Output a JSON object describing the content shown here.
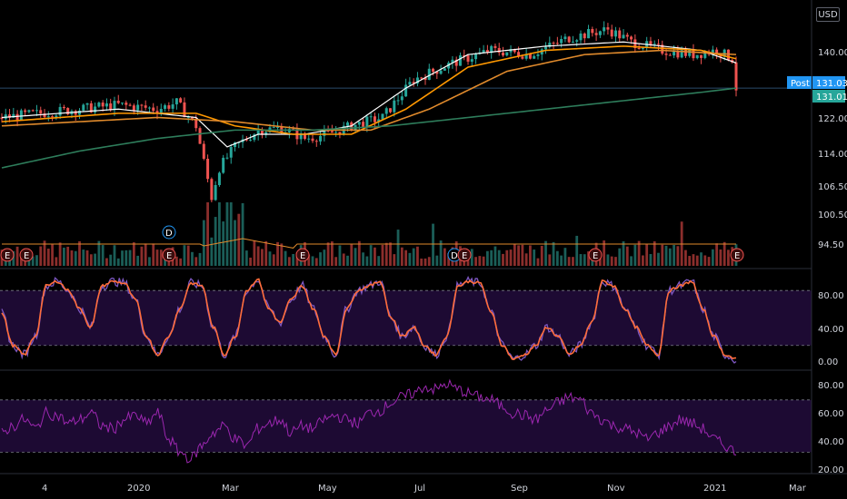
{
  "currency_label": "USD",
  "price_axis": {
    "ticks": [
      "140.00",
      "131.01",
      "122.00",
      "114.00",
      "106.50",
      "100.50",
      "94.50"
    ],
    "post_label": "Post",
    "post_value": "131.03",
    "last_value": "131.01"
  },
  "stoch_axis": {
    "ticks": [
      "80.00",
      "40.00",
      "0.00"
    ]
  },
  "rsi_axis": {
    "ticks": [
      "80.00",
      "60.00",
      "40.00",
      "20.00"
    ]
  },
  "time_axis": {
    "labels": [
      "4",
      "2020",
      "Mar",
      "May",
      "Jul",
      "Sep",
      "Nov",
      "2021",
      "Mar"
    ]
  },
  "event_markers": [
    {
      "label": "E"
    },
    {
      "label": "E"
    },
    {
      "label": "D"
    },
    {
      "label": "E"
    },
    {
      "label": "E"
    },
    {
      "label": "D"
    },
    {
      "label": "E"
    },
    {
      "label": "E"
    },
    {
      "label": "E"
    }
  ],
  "colors": {
    "background": "#000000",
    "up": "#26a69a",
    "down": "#ef5350",
    "ma_white": "#ffffff",
    "ma_orange_fast": "#ff9800",
    "ma_orange_slow": "#e08a2c",
    "ma_green": "#2e7d5b",
    "stoch_k": "#7e57c2",
    "stoch_d": "#ff6d3a",
    "rsi": "#9c27b0",
    "band_fill": "#1d0a33",
    "post_badge": "#2196f3",
    "last_badge": "#26a69a"
  },
  "chart_data": [
    {
      "type": "candlestick",
      "title": "",
      "ylim": [
        88,
        152
      ],
      "y_ticks": [
        94.5,
        100.5,
        106.5,
        114,
        122,
        131.01,
        140
      ],
      "x_labels": [
        "4",
        "2020",
        "Mar",
        "May",
        "Jul",
        "Sep",
        "Nov",
        "2021",
        "Mar"
      ],
      "price_path": [
        [
          0,
          124
        ],
        [
          10,
          125
        ],
        [
          20,
          126
        ],
        [
          30,
          127
        ],
        [
          40,
          126
        ],
        [
          45,
          127.5
        ],
        [
          50,
          122
        ],
        [
          54,
          105
        ],
        [
          56,
          112
        ],
        [
          60,
          117
        ],
        [
          66,
          121
        ],
        [
          72,
          121.5
        ],
        [
          78,
          119
        ],
        [
          84,
          120
        ],
        [
          90,
          122
        ],
        [
          98,
          124
        ],
        [
          106,
          133
        ],
        [
          116,
          137
        ],
        [
          126,
          140
        ],
        [
          136,
          139
        ],
        [
          146,
          143
        ],
        [
          156,
          145
        ],
        [
          162,
          142
        ],
        [
          170,
          140
        ],
        [
          178,
          139
        ],
        [
          184,
          140
        ],
        [
          188,
          138
        ],
        [
          189,
          131.01
        ]
      ],
      "moving_averages": [
        {
          "name": "MA fast (white)",
          "points": [
            [
              0,
              124
            ],
            [
              30,
              126
            ],
            [
              50,
              124
            ],
            [
              58,
              117
            ],
            [
              66,
              120
            ],
            [
              78,
              120
            ],
            [
              90,
              122
            ],
            [
              104,
              131
            ],
            [
              120,
              139
            ],
            [
              140,
              141
            ],
            [
              160,
              142
            ],
            [
              180,
              140
            ],
            [
              189,
              137
            ]
          ]
        },
        {
          "name": "MA mid (orange)",
          "points": [
            [
              0,
              123
            ],
            [
              30,
              125
            ],
            [
              50,
              125
            ],
            [
              60,
              122
            ],
            [
              75,
              120
            ],
            [
              90,
              120
            ],
            [
              104,
              126
            ],
            [
              120,
              136
            ],
            [
              140,
              140
            ],
            [
              160,
              141
            ],
            [
              180,
              140
            ],
            [
              189,
              138
            ]
          ]
        },
        {
          "name": "MA slow (orange)",
          "points": [
            [
              0,
              122
            ],
            [
              40,
              124
            ],
            [
              60,
              123
            ],
            [
              80,
              121
            ],
            [
              95,
              121
            ],
            [
              110,
              126
            ],
            [
              130,
              135
            ],
            [
              150,
              139
            ],
            [
              170,
              140
            ],
            [
              189,
              139
            ]
          ]
        },
        {
          "name": "MA long (green)",
          "points": [
            [
              0,
              112
            ],
            [
              20,
              116
            ],
            [
              40,
              119
            ],
            [
              60,
              121
            ],
            [
              80,
              121
            ],
            [
              100,
              122
            ],
            [
              120,
              124
            ],
            [
              140,
              126
            ],
            [
              160,
              128
            ],
            [
              180,
              130
            ],
            [
              189,
              131
            ]
          ]
        }
      ],
      "volume": {
        "avg_line": true
      }
    },
    {
      "type": "line",
      "title": "",
      "ylim": [
        -5,
        100
      ],
      "bands": [
        20,
        80
      ],
      "series": [
        {
          "values": [
            55,
            20,
            10,
            30,
            85,
            90,
            80,
            60,
            40,
            85,
            90,
            88,
            70,
            30,
            10,
            30,
            60,
            88,
            85,
            40,
            10,
            30,
            80,
            92,
            60,
            45,
            70,
            85,
            60,
            30,
            10,
            60,
            80,
            85,
            90,
            50,
            30,
            40,
            20,
            10,
            30,
            85,
            90,
            88,
            55,
            20,
            5,
            10,
            20,
            40,
            30,
            10,
            20,
            45,
            90,
            85,
            60,
            40,
            20,
            10,
            80,
            85,
            90,
            60,
            30,
            10,
            5
          ]
        }
      ]
    },
    {
      "type": "line",
      "title": "",
      "ylim": [
        15,
        90
      ],
      "bands": [
        30,
        70
      ],
      "series": [
        {
          "values": [
            45,
            50,
            55,
            48,
            60,
            58,
            52,
            55,
            60,
            50,
            48,
            55,
            58,
            52,
            60,
            40,
            30,
            25,
            35,
            45,
            50,
            40,
            35,
            48,
            52,
            55,
            45,
            50,
            48,
            55,
            58,
            55,
            52,
            60,
            62,
            68,
            72,
            75,
            80,
            78,
            82,
            78,
            75,
            72,
            70,
            65,
            60,
            58,
            55,
            62,
            68,
            72,
            70,
            60,
            55,
            50,
            48,
            45,
            40,
            45,
            50,
            55,
            52,
            48,
            40,
            35,
            30
          ]
        }
      ]
    }
  ]
}
